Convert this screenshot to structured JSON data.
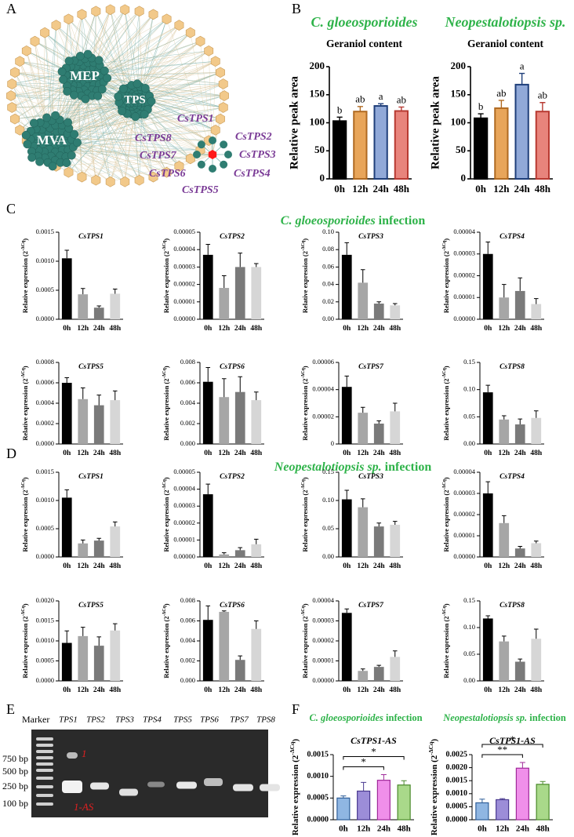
{
  "panel_labels": [
    "A",
    "B",
    "C",
    "D",
    "E",
    "F"
  ],
  "network": {
    "clusters": [
      "MEP",
      "TPS",
      "MVA"
    ],
    "genes": [
      "CsTPS1",
      "CsTPS2",
      "CsTPS3",
      "CsTPS4",
      "CsTPS5",
      "CsTPS6",
      "CsTPS7",
      "CsTPS8"
    ]
  },
  "section_headings": [
    {
      "italic": "C. gloeosporioides",
      "rest": " infection"
    },
    {
      "italic": "Neopestalotiopsis sp.",
      "rest": " infection"
    }
  ],
  "gel": {
    "marker": "Marker",
    "lanes": [
      "TPS1",
      "TPS2",
      "TPS3",
      "TPS4",
      "TPS5",
      "TPS6",
      "TPS7",
      "TPS8"
    ],
    "sizes": [
      "750 bp",
      "500 bp",
      "250 bp",
      "100 bp"
    ],
    "band_labels": [
      "1",
      "1-AS"
    ]
  },
  "chart_data": [
    {
      "type": "bar",
      "heading": "C. gloeosporioides",
      "title": "Geraniol content",
      "ylabel": "Relative peak area",
      "categories": [
        "0h",
        "12h",
        "24h",
        "48h"
      ],
      "values": [
        103,
        120,
        130,
        121
      ],
      "errors": [
        7,
        9,
        4,
        7
      ],
      "bar_colors": [
        "#000000",
        "#e8a55a",
        "#91a9d8",
        "#e8847c"
      ],
      "edge_colors": [
        "#000000",
        "#b06a22",
        "#1f3f7a",
        "#b83a32"
      ],
      "ylim": [
        0,
        200
      ],
      "yticks": [
        0,
        50,
        100,
        150,
        200
      ],
      "annotations": [
        "b",
        "ab",
        "a",
        "ab"
      ]
    },
    {
      "type": "bar",
      "heading": "Neopestalotiopsis sp.",
      "title": "Geraniol content",
      "ylabel": "Relative peak area",
      "categories": [
        "0h",
        "12h",
        "24h",
        "48h"
      ],
      "values": [
        108,
        126,
        168,
        120
      ],
      "errors": [
        8,
        14,
        20,
        16
      ],
      "bar_colors": [
        "#000000",
        "#e8a55a",
        "#91a9d8",
        "#e8847c"
      ],
      "edge_colors": [
        "#000000",
        "#b06a22",
        "#1f3f7a",
        "#b83a32"
      ],
      "ylim": [
        0,
        200
      ],
      "yticks": [
        0,
        50,
        100,
        150,
        200
      ],
      "annotations": [
        "b",
        "ab",
        "a",
        "ab"
      ]
    },
    {
      "type": "bar",
      "title": "CsTPS1",
      "ylabel": {
        "base": "Relative expression (2",
        "sup": "-ΔCq",
        "end": ")"
      },
      "categories": [
        "0h",
        "12h",
        "24h",
        "48h"
      ],
      "values": [
        0.00105,
        0.00043,
        0.0002,
        0.00044
      ],
      "errors": [
        0.00014,
        0.0001,
        3e-05,
        8e-05
      ],
      "bar_colors": [
        "#000000",
        "#a6a6a6",
        "#7a7a7a",
        "#d6d6d6"
      ],
      "ylim": [
        0,
        0.0015
      ],
      "yticks": [
        {
          "value": 0,
          "label": "0.0000"
        },
        0.0005,
        {
          "value": 0.001,
          "label": "0.0010"
        },
        0.0015
      ]
    },
    {
      "type": "bar",
      "title": "CsTPS2",
      "ylabel": {
        "base": "Relative expression (2",
        "sup": "-ΔCq",
        "end": ")"
      },
      "categories": [
        "0h",
        "12h",
        "24h",
        "48h"
      ],
      "values": [
        3.7e-05,
        1.8e-05,
        3e-05,
        3e-05
      ],
      "errors": [
        6e-06,
        7e-06,
        8e-06,
        2e-06
      ],
      "bar_colors": [
        "#000000",
        "#a6a6a6",
        "#7a7a7a",
        "#d6d6d6"
      ],
      "ylim": [
        0,
        5e-05
      ],
      "yticks": [
        {
          "value": 0,
          "label": "0.00000"
        },
        1e-05,
        2e-05,
        3e-05,
        4e-05,
        5e-05
      ]
    },
    {
      "type": "bar",
      "title": "CsTPS3",
      "ylabel": {
        "base": "Relative expression (2",
        "sup": "-ΔCq",
        "end": ")"
      },
      "categories": [
        "0h",
        "12h",
        "24h",
        "48h"
      ],
      "values": [
        0.074,
        0.042,
        0.018,
        0.016
      ],
      "errors": [
        0.014,
        0.015,
        0.002,
        0.002
      ],
      "bar_colors": [
        "#000000",
        "#a6a6a6",
        "#7a7a7a",
        "#d6d6d6"
      ],
      "ylim": [
        0,
        0.1
      ],
      "yticks": [
        {
          "value": 0,
          "label": "0.00"
        },
        0.02,
        0.04,
        0.06,
        0.08,
        {
          "value": 0.1,
          "label": "0.10"
        }
      ]
    },
    {
      "type": "bar",
      "title": "CsTPS4",
      "ylabel": {
        "base": "Relative expression (2",
        "sup": "-ΔCq",
        "end": ")"
      },
      "categories": [
        "0h",
        "12h",
        "24h",
        "48h"
      ],
      "values": [
        3e-05,
        1e-05,
        1.3e-05,
        7e-06
      ],
      "errors": [
        5.5e-06,
        6e-06,
        6e-06,
        2.5e-06
      ],
      "bar_colors": [
        "#000000",
        "#a6a6a6",
        "#7a7a7a",
        "#d6d6d6"
      ],
      "ylim": [
        0,
        4e-05
      ],
      "yticks": [
        {
          "value": 0,
          "label": "0.00000"
        },
        1e-05,
        2e-05,
        3e-05,
        4e-05
      ]
    },
    {
      "type": "bar",
      "title": "CsTPS5",
      "ylabel": {
        "base": "Relative expression (2",
        "sup": "-ΔCq",
        "end": ")"
      },
      "categories": [
        "0h",
        "12h",
        "24h",
        "48h"
      ],
      "values": [
        0.0006,
        0.00044,
        0.00038,
        0.00043
      ],
      "errors": [
        5e-05,
        0.00011,
        0.0001,
        9e-05
      ],
      "bar_colors": [
        "#000000",
        "#a6a6a6",
        "#7a7a7a",
        "#d6d6d6"
      ],
      "ylim": [
        0,
        0.0008
      ],
      "yticks": [
        {
          "value": 0,
          "label": "0.0000"
        },
        0.0002,
        0.0004,
        0.0006,
        0.0008
      ]
    },
    {
      "type": "bar",
      "title": "CsTPS6",
      "ylabel": {
        "base": "Relative expression (2",
        "sup": "-ΔCq",
        "end": ")"
      },
      "categories": [
        "0h",
        "12h",
        "24h",
        "48h"
      ],
      "values": [
        0.0061,
        0.0046,
        0.0051,
        0.0043
      ],
      "errors": [
        0.0014,
        0.0018,
        0.0015,
        0.0008
      ],
      "bar_colors": [
        "#000000",
        "#a6a6a6",
        "#7a7a7a",
        "#d6d6d6"
      ],
      "ylim": [
        0,
        0.008
      ],
      "yticks": [
        {
          "value": 0,
          "label": "0.000"
        },
        0.002,
        0.004,
        0.006,
        0.008
      ]
    },
    {
      "type": "bar",
      "title": "CsTPS7",
      "ylabel": {
        "base": "Relative expression (2",
        "sup": "-ΔCq",
        "end": ")"
      },
      "categories": [
        "0h",
        "12h",
        "24h",
        "48h"
      ],
      "values": [
        4.2e-05,
        2.3e-05,
        1.5e-05,
        2.4e-05
      ],
      "errors": [
        8e-06,
        4e-06,
        2e-06,
        6e-06
      ],
      "bar_colors": [
        "#000000",
        "#a6a6a6",
        "#7a7a7a",
        "#d6d6d6"
      ],
      "ylim": [
        0,
        6e-05
      ],
      "yticks": [
        {
          "value": 0,
          "label": "0"
        },
        2e-05,
        4e-05,
        6e-05
      ]
    },
    {
      "type": "bar",
      "title": "CsTPS8",
      "ylabel": {
        "base": "Relative expression (2",
        "sup": "-ΔCq",
        "end": ")"
      },
      "categories": [
        "0h",
        "12h",
        "24h",
        "48h"
      ],
      "values": [
        0.095,
        0.045,
        0.036,
        0.048
      ],
      "errors": [
        0.013,
        0.007,
        0.01,
        0.013
      ],
      "bar_colors": [
        "#000000",
        "#a6a6a6",
        "#7a7a7a",
        "#d6d6d6"
      ],
      "ylim": [
        0,
        0.15
      ],
      "yticks": [
        {
          "value": 0,
          "label": "0.00"
        },
        0.05,
        {
          "value": 0.1,
          "label": "0.10"
        },
        0.15
      ]
    },
    {
      "type": "bar",
      "title": "CsTPS1",
      "ylabel": {
        "base": "Relative expression (2",
        "sup": "-ΔCq",
        "end": ")"
      },
      "categories": [
        "0h",
        "12h",
        "24h",
        "48h"
      ],
      "values": [
        0.00105,
        0.00024,
        0.00029,
        0.00054
      ],
      "errors": [
        0.00014,
        6e-05,
        4e-05,
        8e-05
      ],
      "bar_colors": [
        "#000000",
        "#a6a6a6",
        "#7a7a7a",
        "#d6d6d6"
      ],
      "ylim": [
        0,
        0.0015
      ],
      "yticks": [
        {
          "value": 0,
          "label": "0.0000"
        },
        0.0005,
        {
          "value": 0.001,
          "label": "0.0010"
        },
        0.0015
      ]
    },
    {
      "type": "bar",
      "title": "CsTPS2",
      "ylabel": {
        "base": "Relative expression (2",
        "sup": "-ΔCq",
        "end": ")"
      },
      "categories": [
        "0h",
        "12h",
        "24h",
        "48h"
      ],
      "values": [
        3.7e-05,
        1.5e-06,
        4e-06,
        7.5e-06
      ],
      "errors": [
        6e-06,
        1e-06,
        1.5e-06,
        3e-06
      ],
      "bar_colors": [
        "#000000",
        "#a6a6a6",
        "#7a7a7a",
        "#d6d6d6"
      ],
      "ylim": [
        0,
        5e-05
      ],
      "yticks": [
        {
          "value": 0,
          "label": "0.00000"
        },
        1e-05,
        2e-05,
        3e-05,
        4e-05,
        5e-05
      ]
    },
    {
      "type": "bar",
      "title": "CsTPS3",
      "ylabel": {
        "base": "Relative expression (2",
        "sup": "-ΔCq",
        "end": ")"
      },
      "categories": [
        "0h",
        "12h",
        "24h",
        "48h"
      ],
      "values": [
        0.102,
        0.088,
        0.054,
        0.057
      ],
      "errors": [
        0.016,
        0.015,
        0.006,
        0.006
      ],
      "bar_colors": [
        "#000000",
        "#a6a6a6",
        "#7a7a7a",
        "#d6d6d6"
      ],
      "ylim": [
        0,
        0.15
      ],
      "yticks": [
        {
          "value": 0,
          "label": "0.00"
        },
        0.05,
        {
          "value": 0.1,
          "label": "0.10"
        },
        0.15
      ]
    },
    {
      "type": "bar",
      "title": "CsTPS4",
      "ylabel": {
        "base": "Relative expression (2",
        "sup": "-ΔCq",
        "end": ")"
      },
      "categories": [
        "0h",
        "12h",
        "24h",
        "48h"
      ],
      "values": [
        3e-05,
        1.6e-05,
        4e-06,
        6.5e-06
      ],
      "errors": [
        5.5e-06,
        3.5e-06,
        1e-06,
        1e-06
      ],
      "bar_colors": [
        "#000000",
        "#a6a6a6",
        "#7a7a7a",
        "#d6d6d6"
      ],
      "ylim": [
        0,
        4e-05
      ],
      "yticks": [
        {
          "value": 0,
          "label": "0.00000"
        },
        1e-05,
        2e-05,
        3e-05,
        4e-05
      ]
    },
    {
      "type": "bar",
      "title": "CsTPS5",
      "ylabel": {
        "base": "Relative expression (2",
        "sup": "-ΔCq",
        "end": ")"
      },
      "categories": [
        "0h",
        "12h",
        "24h",
        "48h"
      ],
      "values": [
        0.00095,
        0.00112,
        0.00088,
        0.00126
      ],
      "errors": [
        0.0003,
        0.00022,
        0.00022,
        0.00017
      ],
      "bar_colors": [
        "#000000",
        "#a6a6a6",
        "#7a7a7a",
        "#d6d6d6"
      ],
      "ylim": [
        0,
        0.002
      ],
      "yticks": [
        {
          "value": 0,
          "label": "0.0000"
        },
        0.0005,
        {
          "value": 0.001,
          "label": "0.0010"
        },
        0.0015,
        {
          "value": 0.002,
          "label": "0.0020"
        }
      ]
    },
    {
      "type": "bar",
      "title": "CsTPS6",
      "ylabel": {
        "base": "Relative expression (2",
        "sup": "-ΔCq",
        "end": ")"
      },
      "categories": [
        "0h",
        "12h",
        "24h",
        "48h"
      ],
      "values": [
        0.0061,
        0.0069,
        0.0021,
        0.0052
      ],
      "errors": [
        0.0014,
        0.0001,
        0.0004,
        0.0008
      ],
      "bar_colors": [
        "#000000",
        "#a6a6a6",
        "#7a7a7a",
        "#d6d6d6"
      ],
      "ylim": [
        0,
        0.008
      ],
      "yticks": [
        {
          "value": 0,
          "label": "0.000"
        },
        0.002,
        0.004,
        0.006,
        0.008
      ]
    },
    {
      "type": "bar",
      "title": "CsTPS7",
      "ylabel": {
        "base": "Relative expression (2",
        "sup": "-ΔCq",
        "end": ")"
      },
      "categories": [
        "0h",
        "12h",
        "24h",
        "48h"
      ],
      "values": [
        3.4e-05,
        5e-06,
        7e-06,
        1.2e-05
      ],
      "errors": [
        2e-06,
        1e-06,
        8e-07,
        3e-06
      ],
      "bar_colors": [
        "#000000",
        "#a6a6a6",
        "#7a7a7a",
        "#d6d6d6"
      ],
      "ylim": [
        0,
        4e-05
      ],
      "yticks": [
        {
          "value": 0,
          "label": "0.00000"
        },
        1e-05,
        2e-05,
        3e-05,
        4e-05
      ]
    },
    {
      "type": "bar",
      "title": "CsTPS8",
      "ylabel": {
        "base": "Relative expression (2",
        "sup": "-ΔCq",
        "end": ")"
      },
      "categories": [
        "0h",
        "12h",
        "24h",
        "48h"
      ],
      "values": [
        0.117,
        0.074,
        0.036,
        0.079
      ],
      "errors": [
        0.005,
        0.01,
        0.005,
        0.018
      ],
      "bar_colors": [
        "#000000",
        "#a6a6a6",
        "#7a7a7a",
        "#d6d6d6"
      ],
      "ylim": [
        0,
        0.15
      ],
      "yticks": [
        {
          "value": 0,
          "label": "0.00"
        },
        0.05,
        {
          "value": 0.1,
          "label": "0.10"
        },
        0.15
      ]
    },
    {
      "type": "bar",
      "heading": {
        "italic": "C. gloeosporioides",
        "rest": " infection"
      },
      "title": "CsTPS1-AS",
      "ylabel": {
        "base": "Relative expression (2",
        "sup": "-ΔCq",
        "end": ")"
      },
      "categories": [
        "0h",
        "12h",
        "24h",
        "48h"
      ],
      "values": [
        0.0005,
        0.00066,
        0.00091,
        0.0008
      ],
      "errors": [
        5e-05,
        0.0002,
        0.00013,
        0.0001
      ],
      "bar_colors": [
        "#8fb6e2",
        "#9c8dd8",
        "#f08fea",
        "#a9d98a"
      ],
      "edge_colors": [
        "#2f5f9a",
        "#4a3a90",
        "#a02a9a",
        "#4a8a2a"
      ],
      "ylim": [
        0,
        0.0015
      ],
      "yticks": [
        {
          "value": 0,
          "label": "0.0000"
        },
        0.0005,
        {
          "value": 0.001,
          "label": "0.0010"
        },
        0.0015
      ],
      "significance": [
        {
          "between": [
            "0h",
            "24h"
          ],
          "label": "*"
        },
        {
          "between": [
            "0h",
            "48h"
          ],
          "label": "*"
        }
      ]
    },
    {
      "type": "bar",
      "heading": {
        "italic": "Neopestalotiopsis sp.",
        "rest": " infection"
      },
      "title": "CsTPS1-AS",
      "ylabel": {
        "base": "Relative expression (2",
        "sup": "-ΔCq",
        "end": ")"
      },
      "categories": [
        "0h",
        "12h",
        "24h",
        "48h"
      ],
      "values": [
        0.00065,
        0.00077,
        0.00198,
        0.00136
      ],
      "errors": [
        0.00014,
        4e-05,
        0.00022,
        0.00011
      ],
      "bar_colors": [
        "#8fb6e2",
        "#9c8dd8",
        "#f08fea",
        "#a9d98a"
      ],
      "edge_colors": [
        "#2f5f9a",
        "#4a3a90",
        "#a02a9a",
        "#4a8a2a"
      ],
      "ylim": [
        0,
        0.0025
      ],
      "yticks": [
        {
          "value": 0,
          "label": "0.0000"
        },
        0.0005,
        {
          "value": 0.001,
          "label": "0.0010"
        },
        0.0015,
        {
          "value": 0.002,
          "label": "0.0020"
        },
        0.0025
      ],
      "significance": [
        {
          "between": [
            "0h",
            "24h"
          ],
          "label": "**"
        },
        {
          "between": [
            "0h",
            "48h"
          ],
          "label": "*"
        }
      ]
    }
  ]
}
